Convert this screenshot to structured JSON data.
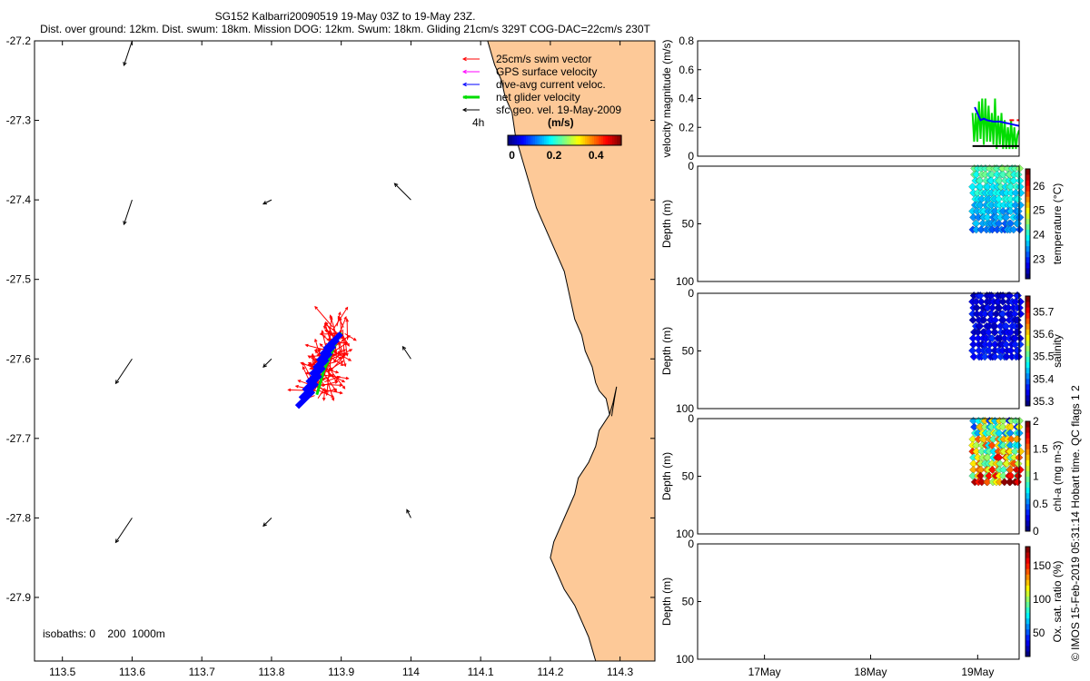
{
  "header": {
    "line1": "SG152 Kalbarri20090519 19-May 03Z to 19-May 23Z.",
    "line2": "Dist. over ground: 12km. Dist. swum: 18km. Mission DOG: 12km. Swum: 18km. Gliding 21cm/s 329T COG-DAC=22cm/s 230T"
  },
  "credit": "© IMOS 15-Feb-2019 05:31:14 Hobart time. QC flags 1  2",
  "colors": {
    "land": "#fdc998",
    "swim_vector": "#ff0000",
    "gps_velocity": "#ff00ff",
    "dive_avg": "#0000ff",
    "net_glider": "#00dd00",
    "sfc_geo": "#000000",
    "speed_reference": "#ff0000",
    "geo_reference": "#000000"
  },
  "chart_data": [
    {
      "type": "scatter",
      "panel": "map",
      "xlim": [
        113.46,
        114.35
      ],
      "ylim": [
        -27.98,
        -27.2
      ],
      "x_ticks": [
        113.5,
        113.6,
        113.7,
        113.8,
        113.9,
        114,
        114.1,
        114.2,
        114.3
      ],
      "x_tick_labels": [
        "113.5",
        "113.6",
        "113.7",
        "113.8",
        "113.9",
        "114",
        "114.1",
        "114.2",
        "114.3"
      ],
      "y_ticks": [
        -27.2,
        -27.3,
        -27.4,
        -27.5,
        -27.6,
        -27.7,
        -27.8,
        -27.9
      ],
      "y_tick_labels": [
        "-27.2",
        "-27.3",
        "-27.4",
        "-27.5",
        "-27.6",
        "-27.7",
        "-27.8",
        "-27.9"
      ],
      "legend_position": "top-right",
      "legend": [
        {
          "label": "25cm/s swim vector",
          "color": "#ff0000"
        },
        {
          "label": "GPS surface velocity",
          "color": "#ff00ff"
        },
        {
          "label": "dive-avg current veloc.",
          "color": "#0000ff"
        },
        {
          "label": "net glider velocity",
          "color": "#00dd00"
        },
        {
          "label": "sfc geo. vel. 19-May-2009",
          "color": "#000000"
        }
      ],
      "duration_label": "4h",
      "colorbar": {
        "label": "(m/s)",
        "ticks": [
          0,
          0.2,
          0.4
        ],
        "tick_labels": [
          "0",
          "0.2",
          "0.4"
        ],
        "range": [
          -0.02,
          0.52
        ]
      },
      "isobath_label": "isobaths: 0    200  1000m",
      "coastline": [
        [
          114.11,
          -27.2
        ],
        [
          114.12,
          -27.23
        ],
        [
          114.13,
          -27.25
        ],
        [
          114.135,
          -27.27
        ],
        [
          114.145,
          -27.29
        ],
        [
          114.15,
          -27.32
        ],
        [
          114.16,
          -27.35
        ],
        [
          114.17,
          -27.38
        ],
        [
          114.18,
          -27.41
        ],
        [
          114.19,
          -27.43
        ],
        [
          114.2,
          -27.45
        ],
        [
          114.21,
          -27.47
        ],
        [
          114.22,
          -27.49
        ],
        [
          114.225,
          -27.51
        ],
        [
          114.23,
          -27.53
        ],
        [
          114.235,
          -27.55
        ],
        [
          114.245,
          -27.57
        ],
        [
          114.25,
          -27.59
        ],
        [
          114.26,
          -27.61
        ],
        [
          114.265,
          -27.63
        ],
        [
          114.27,
          -27.64
        ],
        [
          114.28,
          -27.65
        ],
        [
          114.285,
          -27.67
        ],
        [
          114.27,
          -27.69
        ],
        [
          114.265,
          -27.71
        ],
        [
          114.255,
          -27.73
        ],
        [
          114.24,
          -27.75
        ],
        [
          114.235,
          -27.77
        ],
        [
          114.225,
          -27.79
        ],
        [
          114.215,
          -27.81
        ],
        [
          114.205,
          -27.83
        ],
        [
          114.2,
          -27.85
        ],
        [
          114.21,
          -27.87
        ],
        [
          114.22,
          -27.89
        ],
        [
          114.235,
          -27.91
        ],
        [
          114.245,
          -27.93
        ],
        [
          114.255,
          -27.95
        ],
        [
          114.265,
          -27.98
        ]
      ],
      "inlet": [
        [
          114.285,
          -27.67
        ],
        [
          114.29,
          -27.655
        ],
        [
          114.295,
          -27.635
        ],
        [
          114.292,
          -27.65
        ],
        [
          114.288,
          -27.672
        ]
      ],
      "geo_vectors": [
        {
          "x": 113.6,
          "y": -27.2,
          "u": -0.01,
          "v": -0.03
        },
        {
          "x": 113.6,
          "y": -27.4,
          "u": -0.01,
          "v": -0.03
        },
        {
          "x": 113.6,
          "y": -27.6,
          "u": -0.02,
          "v": -0.03
        },
        {
          "x": 113.6,
          "y": -27.8,
          "u": -0.02,
          "v": -0.03
        },
        {
          "x": 113.8,
          "y": -27.4,
          "u": -0.01,
          "v": -0.005
        },
        {
          "x": 113.8,
          "y": -27.6,
          "u": -0.01,
          "v": -0.01
        },
        {
          "x": 113.8,
          "y": -27.8,
          "u": -0.01,
          "v": -0.01
        },
        {
          "x": 114,
          "y": -27.4,
          "u": -0.02,
          "v": 0.02
        },
        {
          "x": 114,
          "y": -27.6,
          "u": -0.01,
          "v": 0.015
        },
        {
          "x": 114,
          "y": -27.8,
          "u": -0.005,
          "v": 0.01
        }
      ],
      "glider_track": [
        [
          113.865,
          -27.645
        ],
        [
          113.87,
          -27.63
        ],
        [
          113.875,
          -27.615
        ],
        [
          113.88,
          -27.605
        ],
        [
          113.885,
          -27.595
        ],
        [
          113.89,
          -27.585
        ],
        [
          113.895,
          -27.575
        ],
        [
          113.9,
          -27.567
        ]
      ],
      "dive_avg_vectors": [
        {
          "x": 113.9,
          "y": -27.568,
          "u": -0.02,
          "v": -0.02
        },
        {
          "x": 113.895,
          "y": -27.575,
          "u": -0.02,
          "v": -0.02
        },
        {
          "x": 113.89,
          "y": -27.583,
          "u": -0.02,
          "v": -0.02
        },
        {
          "x": 113.885,
          "y": -27.592,
          "u": -0.02,
          "v": -0.02
        },
        {
          "x": 113.88,
          "y": -27.6,
          "u": -0.02,
          "v": -0.02
        },
        {
          "x": 113.875,
          "y": -27.61,
          "u": -0.02,
          "v": -0.02
        },
        {
          "x": 113.87,
          "y": -27.62,
          "u": -0.02,
          "v": -0.02
        },
        {
          "x": 113.865,
          "y": -27.63,
          "u": -0.02,
          "v": -0.02
        },
        {
          "x": 113.86,
          "y": -27.64,
          "u": -0.02,
          "v": -0.02
        }
      ]
    },
    {
      "type": "line",
      "panel": "velocity",
      "ylabel": "velocity magnitude (m/s)",
      "xlim": [
        0,
        1
      ],
      "ylim": [
        0,
        0.8
      ],
      "y_ticks": [
        0,
        0.2,
        0.4,
        0.6,
        0.8
      ],
      "y_tick_labels": [
        "0",
        "0.2",
        "0.4",
        "0.6",
        "0.8"
      ],
      "series": [
        {
          "color": "#00dd00",
          "x": [
            0.855,
            0.86,
            0.865,
            0.87,
            0.875,
            0.88,
            0.885,
            0.89,
            0.895,
            0.9,
            0.905,
            0.91,
            0.915,
            0.92,
            0.925,
            0.93,
            0.935,
            0.94,
            0.945,
            0.95,
            0.955,
            0.96,
            0.965,
            0.97,
            0.975,
            0.98,
            0.985,
            0.99,
            0.995,
            1.0
          ],
          "y": [
            0.3,
            0.1,
            0.3,
            0.1,
            0.38,
            0.12,
            0.4,
            0.08,
            0.4,
            0.1,
            0.35,
            0.1,
            0.3,
            0.08,
            0.4,
            0.05,
            0.28,
            0.08,
            0.3,
            0.05,
            0.25,
            0.05,
            0.2,
            0.05,
            0.25,
            0.05,
            0.2,
            0.05,
            0.15,
            0.18
          ]
        },
        {
          "color": "#0000ff",
          "x": [
            0.862,
            0.87,
            0.88,
            0.89,
            0.9,
            0.92,
            0.94,
            0.96,
            0.98,
            1.0
          ],
          "y": [
            0.34,
            0.3,
            0.25,
            0.26,
            0.25,
            0.24,
            0.24,
            0.23,
            0.22,
            0.21
          ]
        },
        {
          "color": "#ff0000",
          "dashed": true,
          "x": [
            0.97,
            1.0
          ],
          "y": [
            0.25,
            0.25
          ]
        },
        {
          "color": "#000000",
          "x": [
            0.855,
            1.0
          ],
          "y": [
            0.07,
            0.07
          ]
        }
      ]
    },
    {
      "type": "scatter",
      "panel": "temperature",
      "ylabel": "Depth (m)",
      "clabel": "temperature (°C)",
      "ylim": [
        0,
        100
      ],
      "y_ticks": [
        0,
        50,
        100
      ],
      "y_tick_labels": [
        "0",
        "50",
        "100"
      ],
      "clim": [
        22.2,
        26.7
      ],
      "cticks": [
        23,
        24,
        25,
        26
      ],
      "ctick_labels": [
        "23",
        "24",
        "25",
        "26"
      ],
      "x_range": [
        0.86,
        1.0
      ],
      "depth_range": [
        0,
        55
      ],
      "value_near_surface": 24.3,
      "value_at_depth": 23.3
    },
    {
      "type": "scatter",
      "panel": "salinity",
      "ylabel": "Depth (m)",
      "clabel": "salinity",
      "ylim": [
        0,
        100
      ],
      "y_ticks": [
        0,
        50,
        100
      ],
      "y_tick_labels": [
        "0",
        "50",
        "100"
      ],
      "clim": [
        35.28,
        35.77
      ],
      "cticks": [
        35.3,
        35.4,
        35.5,
        35.6,
        35.7
      ],
      "ctick_labels": [
        "35.3",
        "35.4",
        "35.5",
        "35.6",
        "35.7"
      ],
      "x_range": [
        0.86,
        1.0
      ],
      "depth_range": [
        0,
        55
      ],
      "value_near_surface": 35.33,
      "value_at_depth": 35.34
    },
    {
      "type": "scatter",
      "panel": "chlorophyll",
      "ylabel": "Depth (m)",
      "clabel": "chl-a (mg m-3)",
      "ylim": [
        0,
        100
      ],
      "y_ticks": [
        0,
        50,
        100
      ],
      "y_tick_labels": [
        "0",
        "50",
        "100"
      ],
      "clim": [
        0,
        2
      ],
      "cticks": [
        0,
        0.5,
        1,
        1.5,
        2
      ],
      "ctick_labels": [
        "0",
        "0.5",
        "1",
        "1.5",
        "2"
      ],
      "x_range": [
        0.86,
        1.0
      ],
      "depth_range": [
        0,
        55
      ],
      "value_near_surface": 0.8,
      "value_at_depth": 1.5
    },
    {
      "type": "scatter",
      "panel": "oxygen",
      "ylabel": "Depth (m)",
      "clabel": "Ox. sat. ratio (%)",
      "ylim": [
        0,
        100
      ],
      "y_ticks": [
        0,
        50,
        100
      ],
      "y_tick_labels": [
        "0",
        "50",
        "100"
      ],
      "clim": [
        15,
        178
      ],
      "cticks": [
        50,
        100,
        150
      ],
      "ctick_labels": [
        "50",
        "100",
        "150"
      ],
      "x_ticks": [
        0.208,
        0.538,
        0.871
      ],
      "x_tick_labels": [
        "17May",
        "18May",
        "19May"
      ]
    }
  ]
}
